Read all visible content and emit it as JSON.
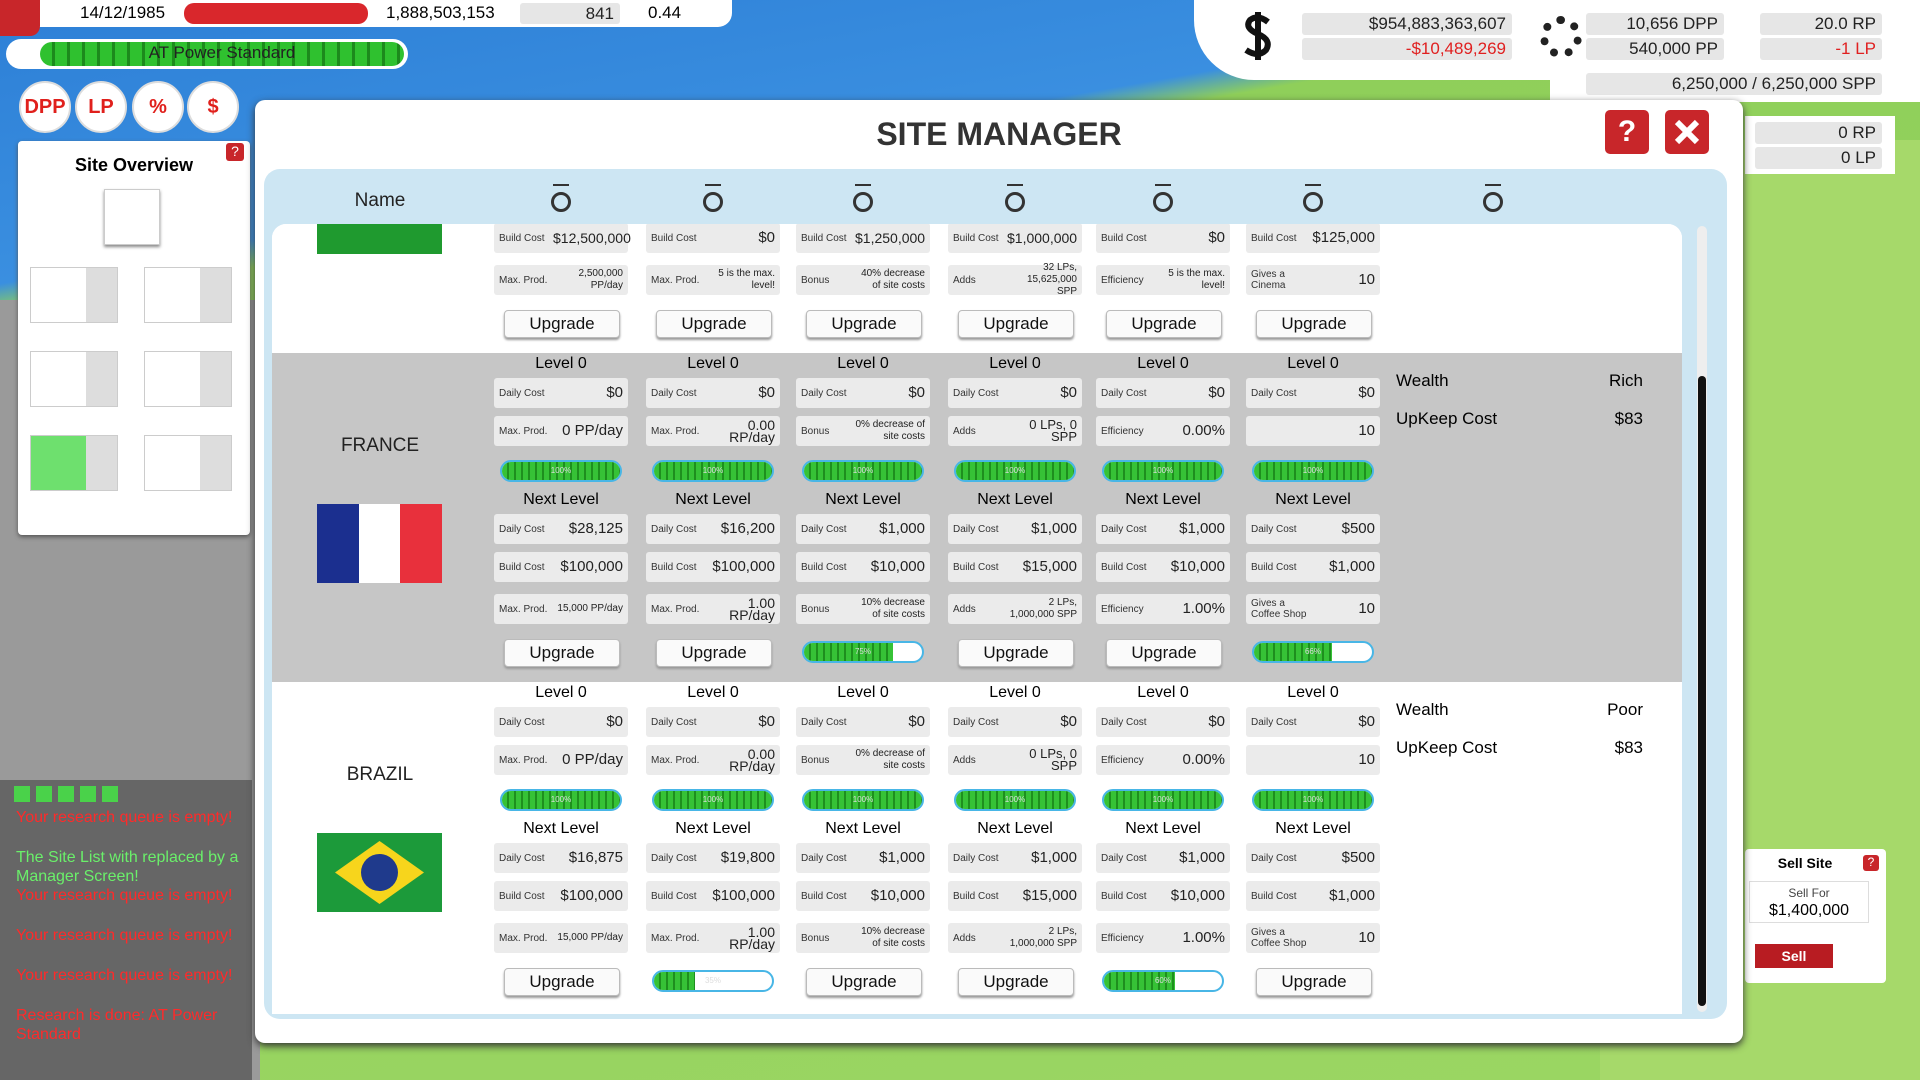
{
  "top_bar": {
    "date": "14/12/1985",
    "population": "1,888,503,153",
    "count": "841",
    "rate": "0.44"
  },
  "research": {
    "current": "AT Power Standard"
  },
  "quick_buttons": [
    "DPP",
    "LP",
    "%",
    "$"
  ],
  "finance": {
    "balance": "$954,883,363,607",
    "change": "-$10,489,269",
    "dpp": "10,656 DPP",
    "pp": "540,000 PP",
    "rp": "20.0 RP",
    "lp": "-1 LP",
    "spp": "6,250,000 / 6,250,000 SPP",
    "rp_side": "0 RP",
    "lp_side": "0 LP"
  },
  "site_overview": {
    "title": "Site Overview",
    "help": "?"
  },
  "messages": [
    "Your research queue is empty!",
    "The Site List with replaced by a Manager Screen!",
    "Your research queue is empty!",
    "Your research queue is empty!",
    "Your research queue is empty!",
    "Research is done: AT Power Standard"
  ],
  "sell_site": {
    "title": "Sell Site",
    "help": "?",
    "label": "Sell For",
    "price": "$1,400,000",
    "button": "Sell"
  },
  "site_manager": {
    "title": "SITE MANAGER",
    "help": "?",
    "name_header": "Name",
    "partial_row": {
      "cells": [
        {
          "lines": [
            [
              "Build Cost",
              "$12,500,000"
            ],
            [
              "Max. Prod.",
              "2,500,000 PP/day"
            ]
          ],
          "action": "Upgrade"
        },
        {
          "lines": [
            [
              "Build Cost",
              "$0"
            ],
            [
              "Max. Prod.",
              "5 is the max. level!"
            ]
          ],
          "action": "Upgrade"
        },
        {
          "lines": [
            [
              "Build Cost",
              "$1,250,000"
            ],
            [
              "Bonus",
              "40% decrease of site costs"
            ]
          ],
          "action": "Upgrade"
        },
        {
          "lines": [
            [
              "Build Cost",
              "$1,000,000"
            ],
            [
              "Adds",
              "32 LPs, 15,625,000 SPP"
            ]
          ],
          "action": "Upgrade"
        },
        {
          "lines": [
            [
              "Build Cost",
              "$0"
            ],
            [
              "Efficiency",
              "5 is the max. level!"
            ]
          ],
          "action": "Upgrade"
        },
        {
          "lines": [
            [
              "Build Cost",
              "$125,000"
            ],
            [
              "Gives a Cinema",
              "10"
            ]
          ],
          "action": "Upgrade"
        }
      ]
    },
    "sites": [
      {
        "name": "FRANCE",
        "wealth_label": "Wealth",
        "wealth": "Rich",
        "upkeep_label": "UpKeep Cost",
        "upkeep": "$83",
        "columns": [
          {
            "level": "Level 0",
            "current": [
              [
                "Daily Cost",
                "$0"
              ],
              [
                "Max. Prod.",
                "0 PP/day"
              ]
            ],
            "progress": {
              "value": 100,
              "label": "100%"
            },
            "next_title": "Next Level",
            "next": [
              [
                "Daily Cost",
                "$28,125"
              ],
              [
                "Build Cost",
                "$100,000"
              ],
              [
                "Max. Prod.",
                "15,000 PP/day"
              ]
            ],
            "action": "Upgrade"
          },
          {
            "level": "Level 0",
            "current": [
              [
                "Daily Cost",
                "$0"
              ],
              [
                "Max. Prod.",
                "0.00 RP/day"
              ]
            ],
            "progress": {
              "value": 100,
              "label": "100%"
            },
            "next_title": "Next Level",
            "next": [
              [
                "Daily Cost",
                "$16,200"
              ],
              [
                "Build Cost",
                "$100,000"
              ],
              [
                "Max. Prod.",
                "1.00 RP/day"
              ]
            ],
            "action": "Upgrade"
          },
          {
            "level": "Level 0",
            "current": [
              [
                "Daily Cost",
                "$0"
              ],
              [
                "Bonus",
                "0% decrease of site costs"
              ]
            ],
            "progress": {
              "value": 100,
              "label": "100%"
            },
            "next_title": "Next Level",
            "next": [
              [
                "Daily Cost",
                "$1,000"
              ],
              [
                "Build Cost",
                "$10,000"
              ],
              [
                "Bonus",
                "10% decrease of site costs"
              ]
            ],
            "action": {
              "value": 75,
              "label": "75%"
            }
          },
          {
            "level": "Level 0",
            "current": [
              [
                "Daily Cost",
                "$0"
              ],
              [
                "Adds",
                "0 LPs, 0 SPP"
              ]
            ],
            "progress": {
              "value": 100,
              "label": "100%"
            },
            "next_title": "Next Level",
            "next": [
              [
                "Daily Cost",
                "$1,000"
              ],
              [
                "Build Cost",
                "$15,000"
              ],
              [
                "Adds",
                "2 LPs, 1,000,000 SPP"
              ]
            ],
            "action": "Upgrade"
          },
          {
            "level": "Level 0",
            "current": [
              [
                "Daily Cost",
                "$0"
              ],
              [
                "Efficiency",
                "0.00%"
              ]
            ],
            "progress": {
              "value": 100,
              "label": "100%"
            },
            "next_title": "Next Level",
            "next": [
              [
                "Daily Cost",
                "$1,000"
              ],
              [
                "Build Cost",
                "$10,000"
              ],
              [
                "Efficiency",
                "1.00%"
              ]
            ],
            "action": "Upgrade"
          },
          {
            "level": "Level 0",
            "current": [
              [
                "Daily Cost",
                "$0"
              ],
              [
                "10"
              ]
            ],
            "progress": {
              "value": 100,
              "label": "100%"
            },
            "next_title": "Next Level",
            "next": [
              [
                "Daily Cost",
                "$500"
              ],
              [
                "Build Cost",
                "$1,000"
              ],
              [
                "Gives a Coffee Shop",
                "10"
              ]
            ],
            "action": {
              "value": 66,
              "label": "66%"
            }
          }
        ]
      },
      {
        "name": "BRAZIL",
        "wealth_label": "Wealth",
        "wealth": "Poor",
        "upkeep_label": "UpKeep Cost",
        "upkeep": "$83",
        "columns": [
          {
            "level": "Level 0",
            "current": [
              [
                "Daily Cost",
                "$0"
              ],
              [
                "Max. Prod.",
                "0 PP/day"
              ]
            ],
            "progress": {
              "value": 100,
              "label": "100%"
            },
            "next_title": "Next Level",
            "next": [
              [
                "Daily Cost",
                "$16,875"
              ],
              [
                "Build Cost",
                "$100,000"
              ],
              [
                "Max. Prod.",
                "15,000 PP/day"
              ]
            ],
            "action": "Upgrade"
          },
          {
            "level": "Level 0",
            "current": [
              [
                "Daily Cost",
                "$0"
              ],
              [
                "Max. Prod.",
                "0.00 RP/day"
              ]
            ],
            "progress": {
              "value": 100,
              "label": "100%"
            },
            "next_title": "Next Level",
            "next": [
              [
                "Daily Cost",
                "$19,800"
              ],
              [
                "Build Cost",
                "$100,000"
              ],
              [
                "Max. Prod.",
                "1.00 RP/day"
              ]
            ],
            "action": {
              "value": 35,
              "label": "35%"
            }
          },
          {
            "level": "Level 0",
            "current": [
              [
                "Daily Cost",
                "$0"
              ],
              [
                "Bonus",
                "0% decrease of site costs"
              ]
            ],
            "progress": {
              "value": 100,
              "label": "100%"
            },
            "next_title": "Next Level",
            "next": [
              [
                "Daily Cost",
                "$1,000"
              ],
              [
                "Build Cost",
                "$10,000"
              ],
              [
                "Bonus",
                "10% decrease of site costs"
              ]
            ],
            "action": "Upgrade"
          },
          {
            "level": "Level 0",
            "current": [
              [
                "Daily Cost",
                "$0"
              ],
              [
                "Adds",
                "0 LPs, 0 SPP"
              ]
            ],
            "progress": {
              "value": 100,
              "label": "100%"
            },
            "next_title": "Next Level",
            "next": [
              [
                "Daily Cost",
                "$1,000"
              ],
              [
                "Build Cost",
                "$15,000"
              ],
              [
                "Adds",
                "2 LPs, 1,000,000 SPP"
              ]
            ],
            "action": "Upgrade"
          },
          {
            "level": "Level 0",
            "current": [
              [
                "Daily Cost",
                "$0"
              ],
              [
                "Efficiency",
                "0.00%"
              ]
            ],
            "progress": {
              "value": 100,
              "label": "100%"
            },
            "next_title": "Next Level",
            "next": [
              [
                "Daily Cost",
                "$1,000"
              ],
              [
                "Build Cost",
                "$10,000"
              ],
              [
                "Efficiency",
                "1.00%"
              ]
            ],
            "action": {
              "value": 60,
              "label": "60%"
            }
          },
          {
            "level": "Level 0",
            "current": [
              [
                "Daily Cost",
                "$0"
              ],
              [
                "10"
              ]
            ],
            "progress": {
              "value": 100,
              "label": "100%"
            },
            "next_title": "Next Level",
            "next": [
              [
                "Daily Cost",
                "$500"
              ],
              [
                "Build Cost",
                "$1,000"
              ],
              [
                "Gives a Coffee Shop",
                "10"
              ]
            ],
            "action": "Upgrade"
          }
        ]
      }
    ]
  }
}
